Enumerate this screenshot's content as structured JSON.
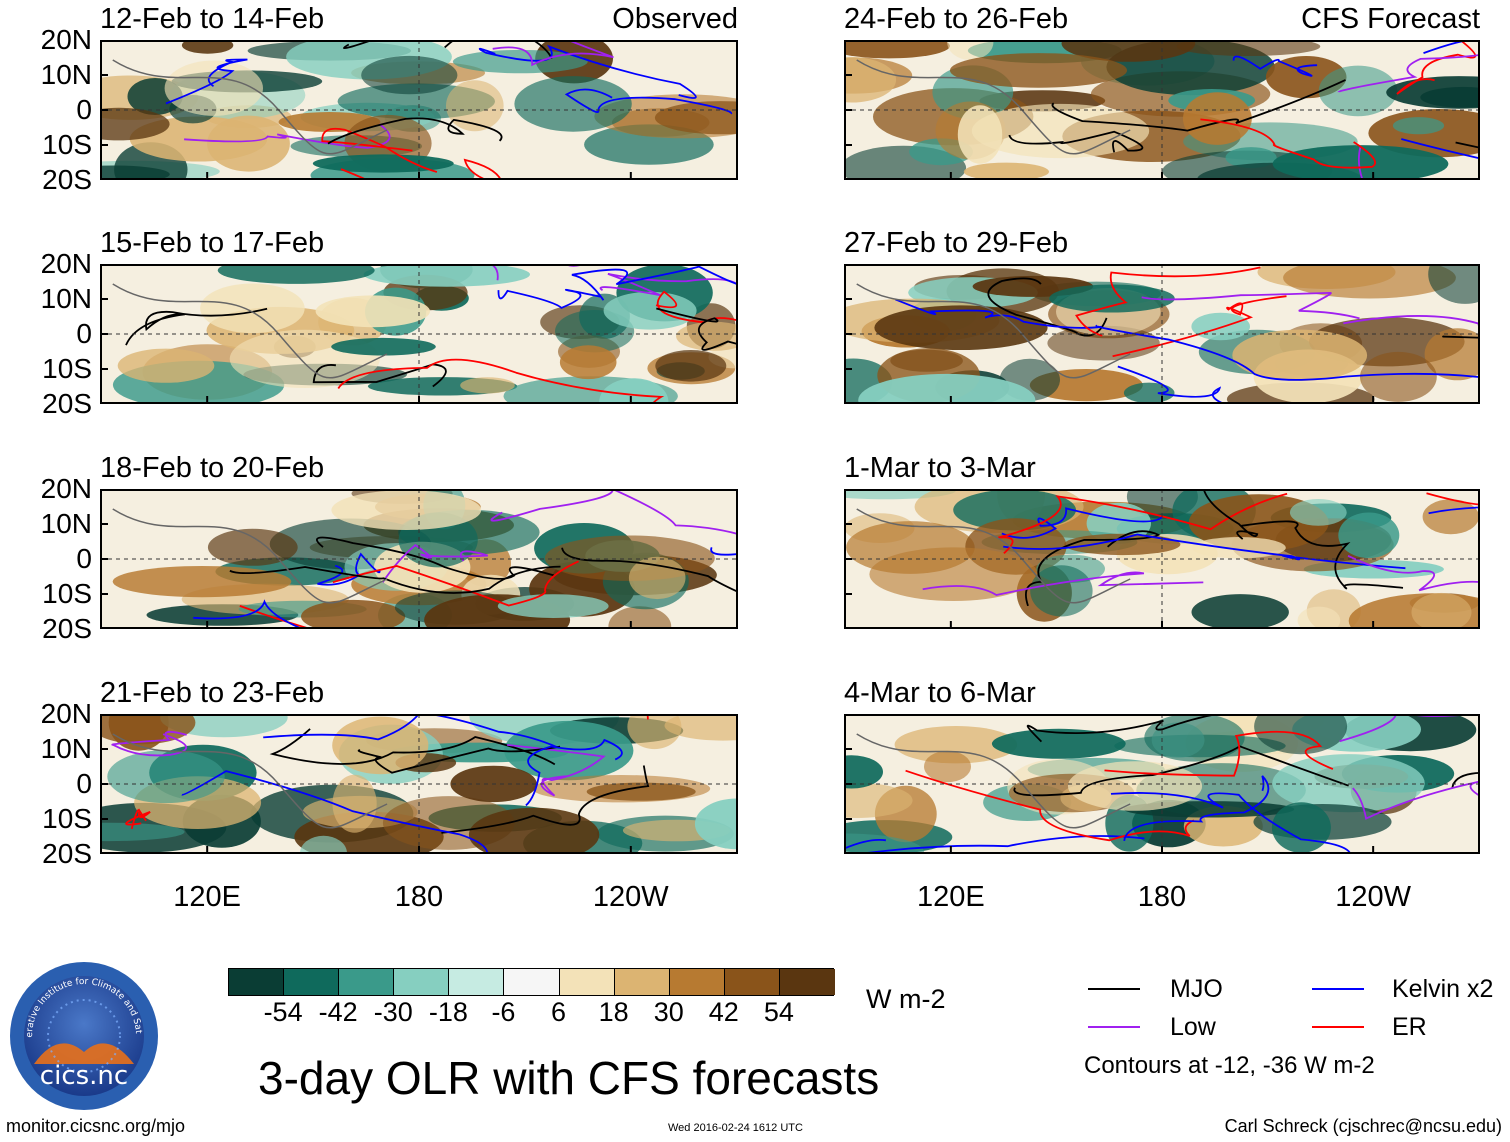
{
  "chart_data": {
    "type": "heatmap",
    "title": "3-day OLR with CFS forecasts",
    "units": "W m-2",
    "observed_label": "Observed",
    "forecast_label": "CFS Forecast",
    "lat_ticks": [
      "20N",
      "10N",
      "0",
      "10S",
      "20S"
    ],
    "lon_ticks": [
      "120E",
      "180",
      "120W"
    ],
    "panels_observed": [
      "12-Feb to 14-Feb",
      "15-Feb to 17-Feb",
      "18-Feb to 20-Feb",
      "21-Feb to 23-Feb"
    ],
    "panels_forecast": [
      "24-Feb to 26-Feb",
      "27-Feb to 29-Feb",
      "1-Mar to 3-Mar",
      "4-Mar to 6-Mar"
    ],
    "colorbar": {
      "ticks": [
        "-54",
        "-42",
        "-30",
        "-18",
        "-6",
        "6",
        "18",
        "30",
        "42",
        "54"
      ],
      "colors": [
        "#0a3d34",
        "#0f6a5c",
        "#3a9a8a",
        "#86cfc0",
        "#c6ebe2",
        "#f6f6f6",
        "#f3e2b8",
        "#dcb472",
        "#b77a31",
        "#8a541a",
        "#5a3610"
      ]
    },
    "legend": {
      "items": [
        {
          "label": "MJO",
          "color": "#000000"
        },
        {
          "label": "Kelvin x2",
          "color": "#0000ff"
        },
        {
          "label": "Low",
          "color": "#a020f0"
        },
        {
          "label": "ER",
          "color": "#ff0000"
        }
      ],
      "note": "Contours at -12, -36 W m-2"
    }
  },
  "footer": {
    "site": "monitor.cicsnc.org/mjo",
    "timestamp": "Wed 2016-02-24 1612 UTC",
    "author": "Carl Schreck (cjschrec@ncsu.edu)"
  },
  "logo": {
    "name": "cics.nc",
    "ring_text": "Cooperative Institute for Climate and Satellites"
  }
}
